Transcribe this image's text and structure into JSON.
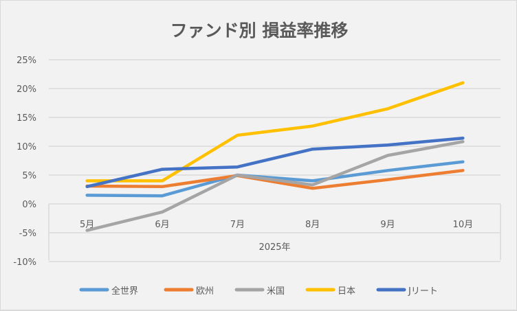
{
  "chart_data": {
    "type": "line",
    "title": "ファンド別 損益率推移",
    "xlabel": "",
    "ylabel": "",
    "categories": [
      "5月",
      "6月",
      "7月",
      "8月",
      "9月",
      "10月"
    ],
    "category_group": "2025年",
    "y_ticks": [
      "25%",
      "20%",
      "15%",
      "10%",
      "5%",
      "0%",
      "-5%",
      "-10%"
    ],
    "y_tick_values": [
      25,
      20,
      15,
      10,
      5,
      0,
      -5,
      -10
    ],
    "ylim": [
      -10,
      25
    ],
    "y_unit": "%",
    "grid": true,
    "legend_position": "bottom",
    "series": [
      {
        "name": "全世界",
        "color": "#5b9bd5",
        "values": [
          1.5,
          1.4,
          5.0,
          4.0,
          5.8,
          7.3
        ]
      },
      {
        "name": "欧州",
        "color": "#ed7d31",
        "values": [
          3.1,
          3.0,
          4.9,
          2.7,
          4.2,
          5.8
        ]
      },
      {
        "name": "米国",
        "color": "#a5a5a5",
        "values": [
          -4.6,
          -1.4,
          5.0,
          3.3,
          8.4,
          10.8
        ]
      },
      {
        "name": "日本",
        "color": "#ffc000",
        "values": [
          4.0,
          4.0,
          11.9,
          13.5,
          16.5,
          21.0
        ]
      },
      {
        "name": "Jリート",
        "color": "#4472c4",
        "values": [
          3.0,
          6.0,
          6.4,
          9.5,
          10.2,
          11.4
        ]
      }
    ]
  }
}
